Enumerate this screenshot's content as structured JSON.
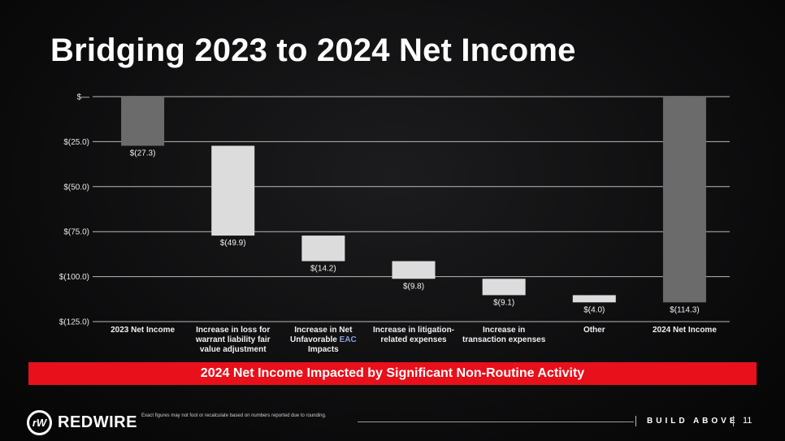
{
  "slide": {
    "title": "Bridging 2023 to 2024 Net Income",
    "banner": "2024 Net Income Impacted by Significant Non-Routine Activity",
    "footnote": "Exact figures may not foot or recalculate based on numbers reported due to rounding.",
    "logo_text": "REDWIRE",
    "logo_icon": "redwire-rw-logo-icon",
    "tagline": "BUILD ABOVE",
    "page_number": "11",
    "colors": {
      "banner": "#e8101a",
      "total_bar": "#6b6b6b",
      "step_bar": "#dcdcdc",
      "eac_accent": "#8aa0d8"
    }
  },
  "chart_data": {
    "type": "waterfall",
    "title": "",
    "xlabel": "",
    "ylabel": "",
    "ylim": [
      -125.0,
      0.0
    ],
    "y_ticks": [
      0,
      -25,
      -50,
      -75,
      -100,
      -125
    ],
    "y_tick_labels": [
      "$—",
      "$(25.0)",
      "$(50.0)",
      "$(75.0)",
      "$(100.0)",
      "$(125.0)"
    ],
    "grid": true,
    "categories": [
      "2023 Net Income",
      "Increase in loss for warrant liability fair value adjustment",
      "Increase in Net Unfavorable EAC Impacts",
      "Increase in litigation-related expenses",
      "Increase in transaction expenses",
      "Other",
      "2024 Net Income"
    ],
    "category_lines": [
      [
        "2023 Net Income"
      ],
      [
        "Increase in loss for",
        "warrant liability fair",
        "value adjustment"
      ],
      [
        "Increase in Net",
        "Unfavorable EAC",
        "Impacts"
      ],
      [
        "Increase in litigation-",
        "related expenses"
      ],
      [
        "Increase in",
        "transaction expenses"
      ],
      [
        "Other"
      ],
      [
        "2024 Net Income"
      ]
    ],
    "values": [
      -27.3,
      -49.9,
      -14.2,
      -9.8,
      -9.1,
      -4.0,
      -114.3
    ],
    "kinds": [
      "total",
      "step",
      "step",
      "step",
      "step",
      "step",
      "total"
    ],
    "data_labels": [
      "$(27.3)",
      "$(49.9)",
      "$(14.2)",
      "$(9.8)",
      "$(9.1)",
      "$(4.0)",
      "$(114.3)"
    ]
  }
}
